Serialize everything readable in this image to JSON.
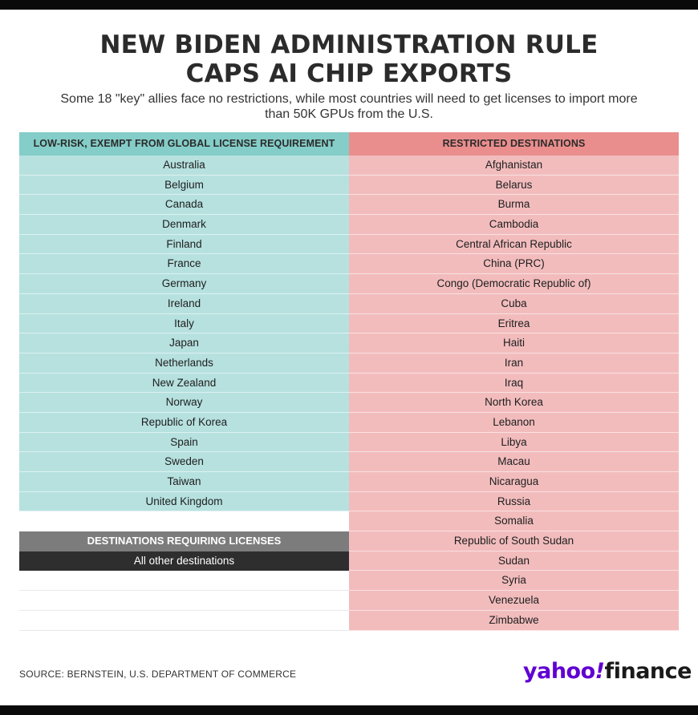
{
  "title": {
    "line1": "NEW BIDEN ADMINISTRATION RULE",
    "line2": "CAPS AI CHIP EXPORTS"
  },
  "subtitle": "Some 18 \"key\" allies face no restrictions, while most countries will need to get licenses to import more than 50K GPUs from the U.S.",
  "low_risk": {
    "header": "LOW-RISK, EXEMPT FROM GLOBAL LICENSE REQUIREMENT",
    "countries": [
      "Australia",
      "Belgium",
      "Canada",
      "Denmark",
      "Finland",
      "France",
      "Germany",
      "Ireland",
      "Italy",
      "Japan",
      "Netherlands",
      "New Zealand",
      "Norway",
      "Republic of Korea",
      "Spain",
      "Sweden",
      "Taiwan",
      "United Kingdom"
    ]
  },
  "restricted": {
    "header": "RESTRICTED DESTINATIONS",
    "countries": [
      "Afghanistan",
      "Belarus",
      "Burma",
      "Cambodia",
      "Central African Republic",
      "China (PRC)",
      "Congo (Democratic Republic of)",
      "Cuba",
      "Eritrea",
      "Haiti",
      "Iran",
      "Iraq",
      "North Korea",
      "Lebanon",
      "Libya",
      "Macau",
      "Nicaragua",
      "Russia",
      "Somalia",
      "Republic of South Sudan",
      "Sudan",
      "Syria",
      "Venezuela",
      "Zimbabwe"
    ]
  },
  "licenses": {
    "header": "DESTINATIONS REQUIRING LICENSES",
    "value": "All other destinations"
  },
  "source": "SOURCE: BERNSTEIN, U.S. DEPARTMENT OF COMMERCE",
  "logo": {
    "part1": "yahoo",
    "part2": "!",
    "part3": "finance"
  },
  "colors": {
    "low_risk_header": "#84cdc8",
    "low_risk_row": "#b6e1df",
    "restricted_header": "#ea8e8d",
    "restricted_row": "#f2bcbd",
    "licenses_header": "#7c7c7c",
    "licenses_row": "#2e2e2e",
    "brand": "#6001d2"
  }
}
